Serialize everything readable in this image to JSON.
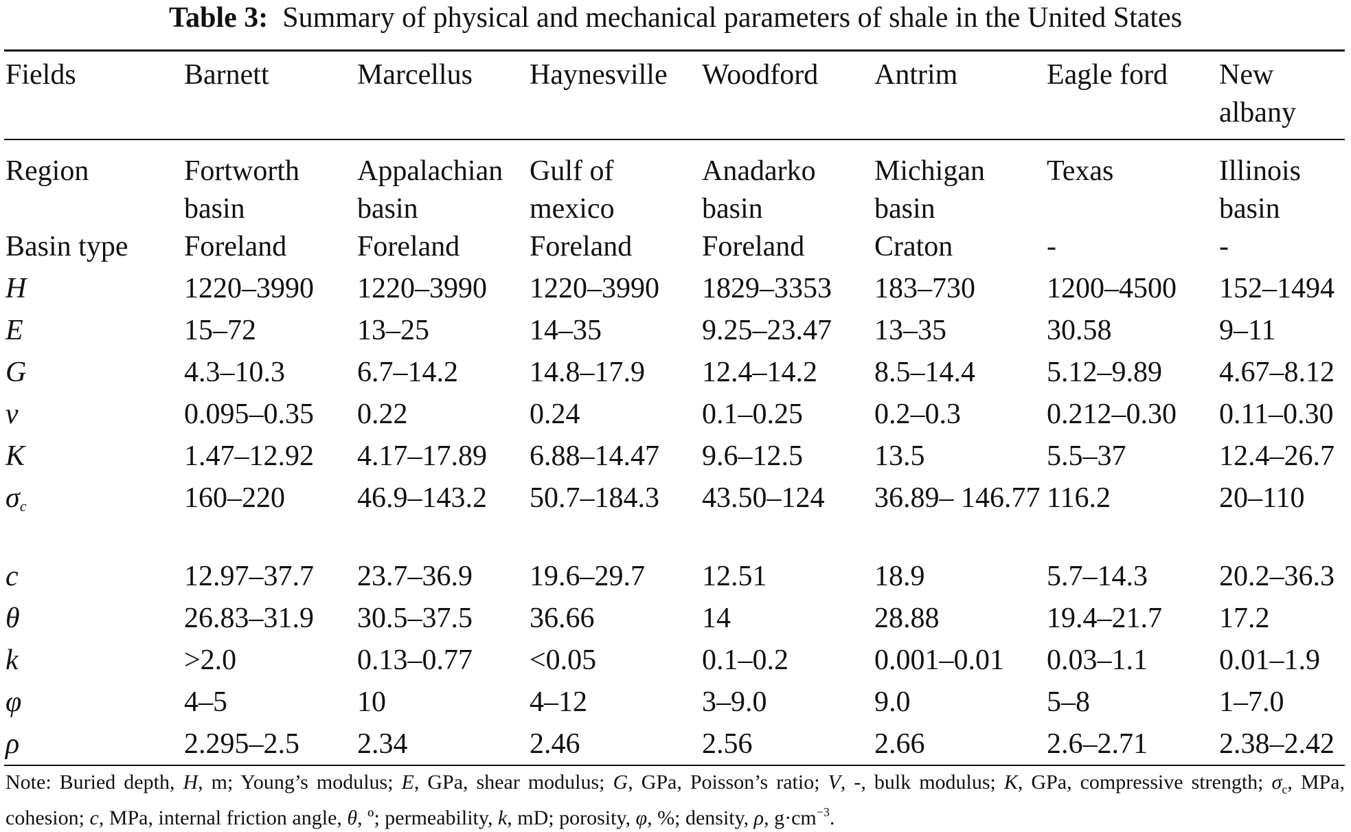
{
  "caption": {
    "label": "Table 3:",
    "title": "Summary of physical and mechanical parameters of shale in the United States"
  },
  "header": {
    "col0": "Fields",
    "col1": "Barnett",
    "col2": "Marcellus",
    "col3": "Haynesville",
    "col4": "Woodford",
    "col5": "Antrim",
    "col6": "Eagle ford",
    "col7": "New albany"
  },
  "rows": {
    "region": {
      "label": "Region",
      "v1": "Fortworth basin",
      "v2": "Appalachian basin",
      "v3": "Gulf of mexico",
      "v4": "Anadarko basin",
      "v5": "Michigan basin",
      "v6": "Texas",
      "v7": "Illinois basin"
    },
    "basin_type": {
      "label": "Basin type",
      "v1": "Foreland",
      "v2": "Foreland",
      "v3": "Foreland",
      "v4": "Foreland",
      "v5": "Craton",
      "v6": "-",
      "v7": "-"
    },
    "H": {
      "label": "H",
      "v1": "1220–3990",
      "v2": "1220–3990",
      "v3": "1220–3990",
      "v4": "1829–3353",
      "v5": "183–730",
      "v6": "1200–4500",
      "v7": "152–1494"
    },
    "E": {
      "label": "E",
      "v1": "15–72",
      "v2": "13–25",
      "v3": "14–35",
      "v4": "9.25–23.47",
      "v5": "13–35",
      "v6": "30.58",
      "v7": "9–11"
    },
    "G": {
      "label": "G",
      "v1": "4.3–10.3",
      "v2": "6.7–14.2",
      "v3": "14.8–17.9",
      "v4": "12.4–14.2",
      "v5": "8.5–14.4",
      "v6": "5.12–9.89",
      "v7": "4.67–8.12"
    },
    "v": {
      "label": "v",
      "v1": "0.095–0.35",
      "v2": "0.22",
      "v3": "0.24",
      "v4": "0.1–0.25",
      "v5": "0.2–0.3",
      "v6": "0.212–0.30",
      "v7": "0.11–0.30"
    },
    "K": {
      "label": "K",
      "v1": "1.47–12.92",
      "v2": "4.17–17.89",
      "v3": "6.88–14.47",
      "v4": "9.6–12.5",
      "v5": "13.5",
      "v6": "5.5–37",
      "v7": "12.4–26.7"
    },
    "sigma_c": {
      "label": "σ",
      "sub": "c",
      "v1": "160–220",
      "v2": "46.9–143.2",
      "v3": "50.7–184.3",
      "v4": "43.50–124",
      "v5": "36.89– 146.77",
      "v6": "116.2",
      "v7": "20–110"
    },
    "c": {
      "label": "c",
      "v1": "12.97–37.7",
      "v2": "23.7–36.9",
      "v3": "19.6–29.7",
      "v4": "12.51",
      "v5": "18.9",
      "v6": "5.7–14.3",
      "v7": "20.2–36.3"
    },
    "theta": {
      "label": "θ",
      "v1": "26.83–31.9",
      "v2": "30.5–37.5",
      "v3": "36.66",
      "v4": "14",
      "v5": "28.88",
      "v6": "19.4–21.7",
      "v7": "17.2"
    },
    "k": {
      "label": "k",
      "v1": ">2.0",
      "v2": "0.13–0.77",
      "v3": "<0.05",
      "v4": "0.1–0.2",
      "v5": "0.001–0.01",
      "v6": "0.03–1.1",
      "v7": "0.01–1.9"
    },
    "phi": {
      "label": "φ",
      "v1": "4–5",
      "v2": "10",
      "v3": "4–12",
      "v4": "3–9.0",
      "v5": "9.0",
      "v6": "5–8",
      "v7": "1–7.0"
    },
    "rho": {
      "label": "ρ",
      "v1": "2.295–2.5",
      "v2": "2.34",
      "v3": "2.46",
      "v4": "2.56",
      "v5": "2.66",
      "v6": "2.6–2.71",
      "v7": "2.38–2.42"
    }
  },
  "note": {
    "prefix": "Note: Buried depth, ",
    "s1": "H",
    "t1": ", m; Young’s modulus; ",
    "s2": "E",
    "t2": ", GPa, shear modulus; ",
    "s3": "G",
    "t3": ", GPa, Poisson’s ratio; ",
    "s4": "V",
    "t4": ", -, bulk modulus; ",
    "s5": "K",
    "t5": ", GPa, compressive strength; ",
    "s6": "σ",
    "s6sub": "c",
    "t6": ", MPa, cohesion; ",
    "s7": "c",
    "t7": ", MPa, internal friction angle, ",
    "s8": "θ",
    "t8": ", º; permeability, ",
    "s9": "k",
    "t9": ", mD; porosity, ",
    "s10": "φ",
    "t10": ", %; density, ",
    "s11": "ρ",
    "t11": ", g·cm",
    "sup": "−3",
    "end": "."
  }
}
